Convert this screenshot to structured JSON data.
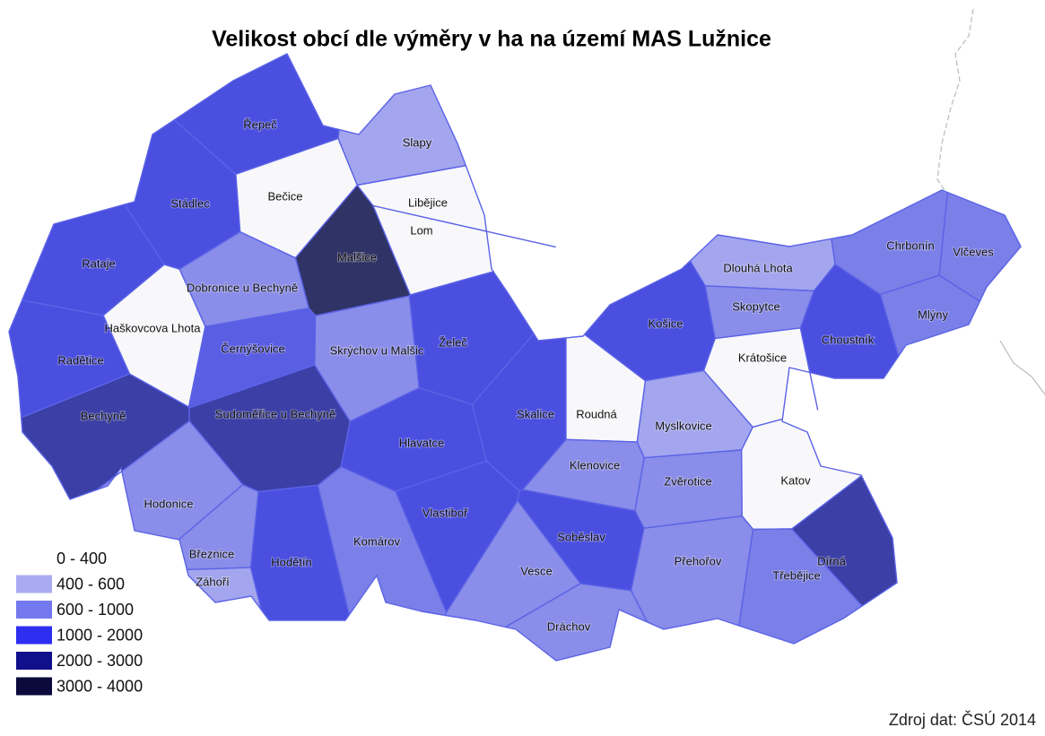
{
  "title": "Velikost obcí dle výměry v ha na území MAS Lužnice",
  "source": "Zdroj dat: ČSÚ 2014",
  "legend": [
    {
      "label": "0 - 400",
      "color": "#ffffff"
    },
    {
      "label": "400 - 600",
      "color": "#a9abf2"
    },
    {
      "label": "600 - 1000",
      "color": "#7478ee"
    },
    {
      "label": "1000 - 2000",
      "color": "#2e2ef0"
    },
    {
      "label": "2000 - 3000",
      "color": "#10108c"
    },
    {
      "label": "3000 - 4000",
      "color": "#0a0a3c"
    }
  ],
  "regions": [
    {
      "name": "Řepeč",
      "color": "#4a4fe0"
    },
    {
      "name": "Slapy",
      "color": "#a3a6ee"
    },
    {
      "name": "Bečice",
      "color": "#f8f8fb"
    },
    {
      "name": "Libějice",
      "color": "#f8f8fb"
    },
    {
      "name": "Lom",
      "color": "#f8f8fb"
    },
    {
      "name": "Stádlec",
      "color": "#4a4fe0"
    },
    {
      "name": "Malšice",
      "color": "#2f3366"
    },
    {
      "name": "Rataje",
      "color": "#4a4fe0"
    },
    {
      "name": "Dobronice u Bechyně",
      "color": "#8a8de9"
    },
    {
      "name": "Haškovcova Lhota",
      "color": "#f8f8fb"
    },
    {
      "name": "Černýšovice",
      "color": "#5a5ee3"
    },
    {
      "name": "Radětice",
      "color": "#4a4fe0"
    },
    {
      "name": "Skrýchov u Malšic",
      "color": "#8a8de9"
    },
    {
      "name": "Želeč",
      "color": "#4a4fe0"
    },
    {
      "name": "Bechyně",
      "color": "#3b3fa6"
    },
    {
      "name": "Sudoměřice u Bechyně",
      "color": "#3b3fa6"
    },
    {
      "name": "Hlavatce",
      "color": "#4a4fe0"
    },
    {
      "name": "Skalice",
      "color": "#4a4fe0"
    },
    {
      "name": "Roudná",
      "color": "#f8f8fb"
    },
    {
      "name": "Myslkovice",
      "color": "#a3a6ee"
    },
    {
      "name": "Košice",
      "color": "#4a4fe0"
    },
    {
      "name": "Dlouhá Lhota",
      "color": "#a3a6ee"
    },
    {
      "name": "Skopytce",
      "color": "#8a8de9"
    },
    {
      "name": "Krátošice",
      "color": "#f8f8fb"
    },
    {
      "name": "Chrbonín",
      "color": "#7b7fe8"
    },
    {
      "name": "Vlčeves",
      "color": "#7b7fe8"
    },
    {
      "name": "Mlýny",
      "color": "#7b7fe8"
    },
    {
      "name": "Choustník",
      "color": "#4a4fe0"
    },
    {
      "name": "Klenovice",
      "color": "#8a8de9"
    },
    {
      "name": "Zvěrotice",
      "color": "#8a8de9"
    },
    {
      "name": "Katov",
      "color": "#f8f8fb"
    },
    {
      "name": "Hodonice",
      "color": "#8a8de9"
    },
    {
      "name": "Vlastiboř",
      "color": "#4a4fe0"
    },
    {
      "name": "Komárov",
      "color": "#7b7fe8"
    },
    {
      "name": "Soběslav",
      "color": "#4a4fe0"
    },
    {
      "name": "Březnice",
      "color": "#8a8de9"
    },
    {
      "name": "Hodětín",
      "color": "#4a4fe0"
    },
    {
      "name": "Vesce",
      "color": "#8a8de9"
    },
    {
      "name": "Přehořov",
      "color": "#8a8de9"
    },
    {
      "name": "Třebějice",
      "color": "#7b7fe8"
    },
    {
      "name": "Dírná",
      "color": "#3b3fa6"
    },
    {
      "name": "Záhoří",
      "color": "#a3a6ee"
    },
    {
      "name": "Dráchov",
      "color": "#8a8de9"
    }
  ]
}
